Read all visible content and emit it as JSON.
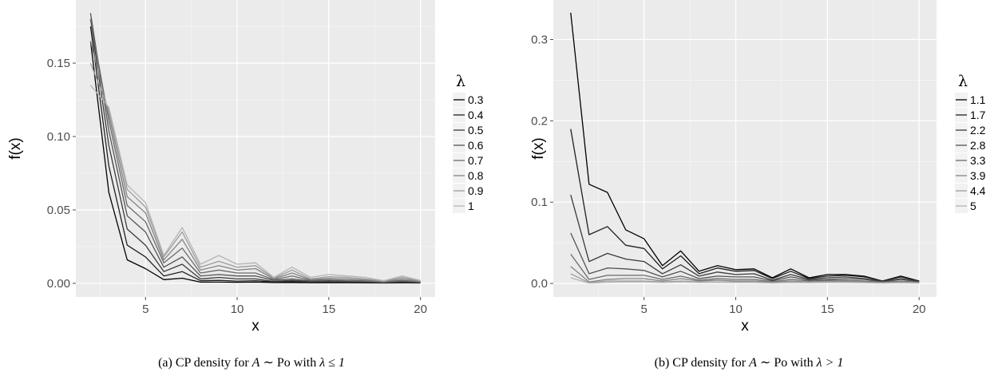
{
  "chart_data": [
    {
      "type": "line",
      "xlabel": "x",
      "ylabel": "f(x)",
      "xlim": [
        1.2,
        20.8
      ],
      "ylim": [
        -0.0093,
        0.193
      ],
      "xticks": [
        5,
        10,
        15,
        20
      ],
      "xtick_labels": [
        "5",
        "10",
        "15",
        "20"
      ],
      "yticks": [
        0,
        0.05,
        0.1,
        0.15
      ],
      "ytick_labels": [
        "0.00",
        "0.05",
        "0.10",
        "0.15"
      ],
      "grid": true,
      "legend_title": "λ",
      "legend_position": "right",
      "caption": {
        "prefix": "(a) CP density for ",
        "math_a": "A",
        "rel": " ∼ Po with ",
        "math_b": "λ ≤ 1"
      },
      "x": [
        2,
        3,
        4,
        5,
        6,
        7,
        8,
        9,
        10,
        11,
        12,
        13,
        14,
        15,
        16,
        17,
        18,
        19,
        20
      ],
      "series": [
        {
          "name": "0.3",
          "color": "#000000",
          "values": [
            0.165,
            0.062,
            0.016,
            0.01,
            0.0025,
            0.0035,
            0.0008,
            0.0008,
            0.0007,
            0.0008,
            0.0005,
            0.0005,
            0.0004,
            0.0004,
            0.0004,
            0.0003,
            0.0002,
            0.0003,
            0.0002
          ]
        },
        {
          "name": "0.4",
          "color": "#202020",
          "values": [
            0.175,
            0.08,
            0.026,
            0.018,
            0.005,
            0.008,
            0.0018,
            0.002,
            0.0015,
            0.0018,
            0.0008,
            0.0012,
            0.0006,
            0.0007,
            0.0006,
            0.0005,
            0.0003,
            0.0005,
            0.0003
          ]
        },
        {
          "name": "0.5",
          "color": "#3a3a3a",
          "values": [
            0.18,
            0.094,
            0.037,
            0.026,
            0.008,
            0.013,
            0.003,
            0.004,
            0.003,
            0.003,
            0.0012,
            0.002,
            0.001,
            0.0012,
            0.001,
            0.0008,
            0.0005,
            0.0009,
            0.0005
          ]
        },
        {
          "name": "0.6",
          "color": "#525252",
          "values": [
            0.184,
            0.104,
            0.046,
            0.035,
            0.011,
            0.018,
            0.005,
            0.006,
            0.005,
            0.005,
            0.002,
            0.003,
            0.0015,
            0.0018,
            0.0015,
            0.0012,
            0.0008,
            0.0014,
            0.0008
          ]
        },
        {
          "name": "0.7",
          "color": "#6a6a6a",
          "values": [
            0.18,
            0.111,
            0.053,
            0.042,
            0.014,
            0.024,
            0.007,
            0.009,
            0.007,
            0.007,
            0.0025,
            0.005,
            0.002,
            0.0025,
            0.002,
            0.0017,
            0.001,
            0.002,
            0.001
          ]
        },
        {
          "name": "0.8",
          "color": "#838383",
          "values": [
            0.165,
            0.115,
            0.059,
            0.048,
            0.016,
            0.03,
            0.009,
            0.012,
            0.009,
            0.01,
            0.003,
            0.007,
            0.0025,
            0.0035,
            0.003,
            0.0023,
            0.0012,
            0.003,
            0.0013
          ]
        },
        {
          "name": "0.9",
          "color": "#9c9c9c",
          "values": [
            0.15,
            0.118,
            0.064,
            0.052,
            0.018,
            0.035,
            0.011,
            0.015,
            0.011,
            0.012,
            0.0035,
            0.009,
            0.003,
            0.0045,
            0.004,
            0.003,
            0.0015,
            0.004,
            0.0017
          ]
        },
        {
          "name": "1",
          "color": "#b4b4b4",
          "values": [
            0.135,
            0.12,
            0.067,
            0.055,
            0.019,
            0.038,
            0.013,
            0.019,
            0.013,
            0.014,
            0.004,
            0.011,
            0.004,
            0.006,
            0.005,
            0.004,
            0.0018,
            0.005,
            0.002
          ]
        }
      ]
    },
    {
      "type": "line",
      "xlabel": "x",
      "ylabel": "f(x)",
      "xlim": [
        0.05,
        20.95
      ],
      "ylim": [
        -0.0166,
        0.3486
      ],
      "xticks": [
        5,
        10,
        15,
        20
      ],
      "xtick_labels": [
        "5",
        "10",
        "15",
        "20"
      ],
      "yticks": [
        0,
        0.1,
        0.2,
        0.3
      ],
      "ytick_labels": [
        "0.0",
        "0.1",
        "0.2",
        "0.3"
      ],
      "grid": true,
      "legend_title": "λ",
      "legend_position": "right",
      "caption": {
        "prefix": "(b) CP density for ",
        "math_a": "A",
        "rel": " ∼ Po with ",
        "math_b": "λ > 1"
      },
      "x": [
        1,
        2,
        3,
        4,
        5,
        6,
        7,
        8,
        9,
        10,
        11,
        12,
        13,
        14,
        15,
        16,
        17,
        18,
        19,
        20
      ],
      "series": [
        {
          "name": "1.1",
          "color": "#000000",
          "values": [
            0.333,
            0.122,
            0.112,
            0.066,
            0.055,
            0.022,
            0.04,
            0.015,
            0.022,
            0.017,
            0.018,
            0.007,
            0.018,
            0.007,
            0.011,
            0.011,
            0.009,
            0.003,
            0.009,
            0.003
          ]
        },
        {
          "name": "1.7",
          "color": "#202020",
          "values": [
            0.19,
            0.06,
            0.07,
            0.047,
            0.043,
            0.018,
            0.034,
            0.012,
            0.019,
            0.015,
            0.016,
            0.006,
            0.015,
            0.006,
            0.009,
            0.01,
            0.008,
            0.003,
            0.008,
            0.003
          ]
        },
        {
          "name": "2.2",
          "color": "#3a3a3a",
          "values": [
            0.109,
            0.027,
            0.037,
            0.03,
            0.027,
            0.012,
            0.023,
            0.009,
            0.014,
            0.011,
            0.012,
            0.004,
            0.011,
            0.005,
            0.007,
            0.008,
            0.006,
            0.0025,
            0.006,
            0.0025
          ]
        },
        {
          "name": "2.8",
          "color": "#525252",
          "values": [
            0.062,
            0.012,
            0.019,
            0.018,
            0.016,
            0.008,
            0.015,
            0.006,
            0.009,
            0.008,
            0.008,
            0.003,
            0.008,
            0.004,
            0.005,
            0.006,
            0.005,
            0.002,
            0.005,
            0.002
          ]
        },
        {
          "name": "3.3",
          "color": "#6a6a6a",
          "values": [
            0.036,
            0.005,
            0.01,
            0.01,
            0.01,
            0.005,
            0.009,
            0.004,
            0.006,
            0.005,
            0.005,
            0.002,
            0.005,
            0.003,
            0.004,
            0.004,
            0.003,
            0.0015,
            0.003,
            0.0015
          ]
        },
        {
          "name": "3.9",
          "color": "#838383",
          "values": [
            0.021,
            0.002,
            0.005,
            0.006,
            0.006,
            0.003,
            0.006,
            0.003,
            0.004,
            0.003,
            0.003,
            0.0015,
            0.003,
            0.002,
            0.003,
            0.003,
            0.002,
            0.001,
            0.002,
            0.001
          ]
        },
        {
          "name": "4.4",
          "color": "#9c9c9c",
          "values": [
            0.012,
            0.001,
            0.003,
            0.003,
            0.003,
            0.002,
            0.003,
            0.002,
            0.002,
            0.002,
            0.002,
            0.001,
            0.002,
            0.0015,
            0.002,
            0.002,
            0.0015,
            0.0008,
            0.0015,
            0.0008
          ]
        },
        {
          "name": "5",
          "color": "#b4b4b4",
          "values": [
            0.007,
            0.0005,
            0.0015,
            0.002,
            0.002,
            0.0012,
            0.002,
            0.0012,
            0.0015,
            0.0012,
            0.0012,
            0.0006,
            0.0012,
            0.001,
            0.0012,
            0.0012,
            0.001,
            0.0005,
            0.001,
            0.0005
          ]
        }
      ]
    }
  ]
}
